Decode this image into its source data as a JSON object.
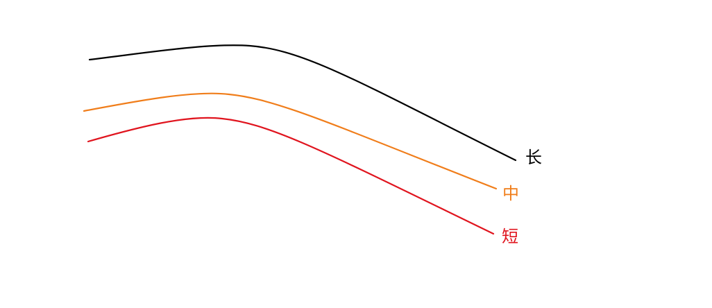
{
  "curves": [
    {
      "label": "长",
      "color": "#000000"
    },
    {
      "label": "中",
      "color": "#f07d1a"
    },
    {
      "label": "短",
      "color": "#e0141e"
    }
  ]
}
